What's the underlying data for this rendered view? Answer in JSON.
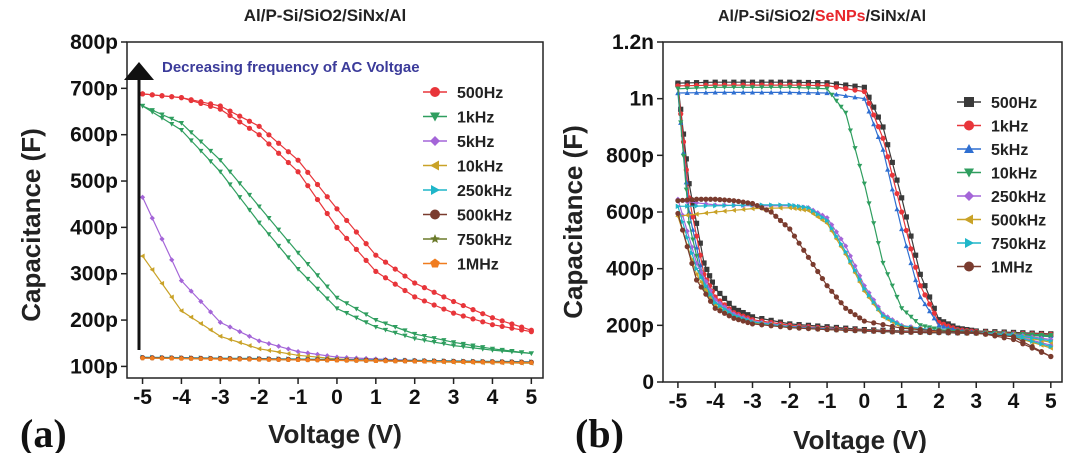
{
  "chart_data": [
    {
      "id": "a",
      "panel_label": "(a)",
      "type": "line",
      "title": "Al/P-Si/SiO2/SiNx/Al",
      "annotation": "Decreasing frequency of AC Voltgae",
      "xlabel": "Voltage (V)",
      "ylabel": "Capacitance (F)",
      "xlim": [
        -5.4,
        5.3
      ],
      "ylim": [
        75,
        800
      ],
      "x_ticks": [
        -5,
        -4,
        -3,
        -2,
        -1,
        0,
        1,
        2,
        3,
        4,
        5
      ],
      "x_tick_labels": [
        "-5",
        "-4",
        "-3",
        "-2",
        "-1",
        "0",
        "1",
        "2",
        "3",
        "4",
        "5"
      ],
      "y_ticks": [
        100,
        200,
        300,
        400,
        500,
        600,
        700,
        800
      ],
      "y_tick_labels": [
        "100p",
        "200p",
        "300p",
        "400p",
        "500p",
        "600p",
        "700p",
        "800p"
      ],
      "legend_position": "top-right",
      "series": [
        {
          "name": "500Hz",
          "color": "#e8353a",
          "marker": "circle",
          "x": [
            -5,
            -4,
            -3,
            -2,
            -1,
            0,
            1,
            2,
            3,
            4,
            5
          ],
          "y_fwd": [
            688,
            680,
            662,
            618,
            545,
            440,
            340,
            280,
            240,
            205,
            178
          ],
          "y_rev": [
            688,
            680,
            655,
            600,
            520,
            400,
            305,
            250,
            215,
            190,
            175
          ]
        },
        {
          "name": "1kHz",
          "color": "#2f9e5f",
          "marker": "triangle-down",
          "x": [
            -5,
            -4,
            -3,
            -2,
            -1,
            0,
            1,
            2,
            3,
            4,
            5
          ],
          "y_fwd": [
            662,
            625,
            545,
            445,
            345,
            248,
            200,
            170,
            152,
            138,
            128
          ],
          "y_rev": [
            662,
            610,
            520,
            410,
            310,
            225,
            185,
            160,
            145,
            135,
            128
          ]
        },
        {
          "name": "5kHz",
          "color": "#a465d8",
          "marker": "diamond",
          "x": [
            -5,
            -4,
            -3,
            -2,
            -1,
            0,
            1,
            2,
            3,
            4,
            5
          ],
          "y": [
            465,
            285,
            195,
            155,
            132,
            120,
            116,
            113,
            111,
            109,
            108
          ]
        },
        {
          "name": "10kHz",
          "color": "#c9a227",
          "marker": "triangle-left",
          "x": [
            -5,
            -4,
            -3,
            -2,
            -1,
            0,
            1,
            2,
            3,
            4,
            5
          ],
          "y": [
            338,
            220,
            165,
            138,
            124,
            116,
            113,
            111,
            109,
            108,
            107
          ]
        },
        {
          "name": "250kHz",
          "color": "#1fb6c9",
          "marker": "triangle-right",
          "x": [
            -5,
            -4,
            -3,
            -2,
            -1,
            0,
            1,
            2,
            3,
            4,
            5
          ],
          "y": [
            120,
            119,
            118,
            117,
            116,
            115,
            114,
            113,
            112,
            111,
            110
          ]
        },
        {
          "name": "500kHz",
          "color": "#7a3b2e",
          "marker": "circle",
          "x": [
            -5,
            -4,
            -3,
            -2,
            -1,
            0,
            1,
            2,
            3,
            4,
            5
          ],
          "y": [
            119,
            118,
            117,
            116,
            115,
            114,
            113,
            112,
            111,
            110,
            109
          ]
        },
        {
          "name": "750kHz",
          "color": "#6b7a2a",
          "marker": "star",
          "x": [
            -5,
            -4,
            -3,
            -2,
            -1,
            0,
            1,
            2,
            3,
            4,
            5
          ],
          "y": [
            118,
            117,
            116,
            115,
            114,
            113,
            112,
            111,
            110,
            109,
            108
          ]
        },
        {
          "name": "1MHz",
          "color": "#f07c1f",
          "marker": "pentagon",
          "x": [
            -5,
            -4,
            -3,
            -2,
            -1,
            0,
            1,
            2,
            3,
            4,
            5
          ],
          "y": [
            118,
            117,
            116,
            115,
            114,
            113,
            112,
            111,
            110,
            109,
            108
          ]
        }
      ]
    },
    {
      "id": "b",
      "panel_label": "(b)",
      "type": "line",
      "title_parts": [
        {
          "text": "Al/P-Si/SiO2/",
          "color": "#222222"
        },
        {
          "text": "SeNPs",
          "color": "#e8262b"
        },
        {
          "text": "/SiNx/Al",
          "color": "#222222"
        }
      ],
      "xlabel": "Voltage (V)",
      "ylabel": "Capacitance (F)",
      "xlim": [
        -5.4,
        5.3
      ],
      "ylim": [
        0,
        1200
      ],
      "x_ticks": [
        -5,
        -4,
        -3,
        -2,
        -1,
        0,
        1,
        2,
        3,
        4,
        5
      ],
      "x_tick_labels": [
        "-5",
        "-4",
        "-3",
        "-2",
        "-1",
        "0",
        "1",
        "2",
        "3",
        "4",
        "5"
      ],
      "y_ticks": [
        0,
        200,
        400,
        600,
        800,
        1000,
        1200
      ],
      "y_tick_labels": [
        "0",
        "200p",
        "400p",
        "600p",
        "800p",
        "1n",
        "1.2n"
      ],
      "legend_position": "right",
      "series": [
        {
          "name": "500Hz",
          "color": "#3a3a3a",
          "marker": "square",
          "x_up": [
            -5,
            -4.7,
            -4.3,
            -4,
            -3.5,
            -3,
            -2,
            -1,
            0,
            1,
            2,
            3,
            4,
            5
          ],
          "y_up": [
            1050,
            700,
            420,
            330,
            260,
            230,
            205,
            195,
            185,
            180,
            178,
            176,
            172,
            168
          ],
          "x_dn": [
            -5,
            -4,
            -3,
            -2,
            -1,
            0,
            0.5,
            1,
            1.5,
            2,
            2.5,
            3,
            4,
            5
          ],
          "y_dn": [
            1055,
            1058,
            1058,
            1058,
            1056,
            1040,
            900,
            650,
            380,
            220,
            190,
            180,
            175,
            170
          ]
        },
        {
          "name": "1kHz",
          "color": "#e8353a",
          "marker": "circle",
          "x_up": [
            -5,
            -4.7,
            -4.3,
            -4,
            -3.5,
            -3,
            -2,
            -1,
            0,
            1,
            2,
            3,
            4,
            5
          ],
          "y_up": [
            1045,
            650,
            380,
            300,
            245,
            220,
            200,
            190,
            182,
            178,
            176,
            174,
            170,
            165
          ],
          "x_dn": [
            -5,
            -4,
            -3,
            -2,
            -1,
            0,
            0.5,
            1,
            1.5,
            2,
            2.5,
            3,
            4,
            5
          ],
          "y_dn": [
            1045,
            1048,
            1048,
            1048,
            1046,
            1025,
            860,
            600,
            340,
            210,
            185,
            178,
            172,
            168
          ]
        },
        {
          "name": "5kHz",
          "color": "#2f6fd1",
          "marker": "triangle-up",
          "x_up": [
            -5,
            -4.7,
            -4.3,
            -4,
            -3.5,
            -3,
            -2,
            -1,
            0,
            1,
            2,
            3,
            4,
            5
          ],
          "y_up": [
            1020,
            600,
            350,
            280,
            235,
            212,
            196,
            188,
            180,
            176,
            174,
            172,
            168,
            162
          ],
          "x_dn": [
            -5,
            -4,
            -3,
            -2,
            -1,
            0,
            0.5,
            1,
            1.5,
            2,
            2.5,
            3,
            4,
            5
          ],
          "y_dn": [
            1020,
            1022,
            1022,
            1022,
            1020,
            1000,
            820,
            540,
            300,
            200,
            182,
            176,
            170,
            165
          ]
        },
        {
          "name": "10kHz",
          "color": "#2f9e5f",
          "marker": "triangle-down",
          "x_up": [
            -5,
            -4.7,
            -4.3,
            -4,
            -3.5,
            -3,
            -2,
            -1,
            0,
            1,
            2,
            3,
            4,
            5
          ],
          "y_up": [
            1035,
            560,
            330,
            270,
            228,
            208,
            194,
            186,
            180,
            176,
            174,
            172,
            168,
            160
          ],
          "x_dn": [
            -5,
            -4,
            -3,
            -2,
            -1,
            -0.5,
            0,
            0.5,
            1,
            1.5,
            2,
            3,
            4,
            5
          ],
          "y_dn": [
            1035,
            1040,
            1040,
            1040,
            1035,
            950,
            700,
            420,
            260,
            200,
            185,
            176,
            170,
            165
          ]
        },
        {
          "name": "250kHz",
          "color": "#a465d8",
          "marker": "diamond",
          "x_up": [
            -5,
            -4.5,
            -4,
            -3.5,
            -3,
            -2,
            -1,
            0,
            1,
            2,
            3,
            4,
            5
          ],
          "y_up": [
            645,
            420,
            290,
            240,
            215,
            195,
            186,
            180,
            176,
            174,
            172,
            168,
            150
          ],
          "x_dn": [
            -5,
            -4,
            -3,
            -2,
            -1.5,
            -1,
            -0.5,
            0,
            0.5,
            1,
            2,
            3,
            4,
            5
          ],
          "y_dn": [
            640,
            625,
            622,
            622,
            615,
            580,
            480,
            340,
            240,
            200,
            180,
            174,
            165,
            130
          ]
        },
        {
          "name": "500kHz",
          "color": "#c9a227",
          "marker": "triangle-left",
          "x_up": [
            -5,
            -4.5,
            -4,
            -3.5,
            -3,
            -2,
            -1,
            0,
            1,
            2,
            3,
            4,
            5
          ],
          "y_up": [
            585,
            380,
            270,
            230,
            210,
            193,
            185,
            180,
            176,
            174,
            172,
            166,
            140
          ],
          "x_dn": [
            -5,
            -4,
            -3,
            -2,
            -1.5,
            -1,
            -0.5,
            0,
            0.5,
            1,
            2,
            3,
            4,
            5
          ],
          "y_dn": [
            585,
            600,
            612,
            615,
            605,
            560,
            450,
            320,
            230,
            195,
            178,
            172,
            160,
            120
          ]
        },
        {
          "name": "750kHz",
          "color": "#1fb6c9",
          "marker": "triangle-right",
          "x_up": [
            -5,
            -4.5,
            -4,
            -3.5,
            -3,
            -2,
            -1,
            0,
            1,
            2,
            3,
            4,
            5
          ],
          "y_up": [
            620,
            400,
            280,
            235,
            212,
            194,
            186,
            180,
            176,
            174,
            172,
            166,
            145
          ],
          "x_dn": [
            -5,
            -4,
            -3,
            -2,
            -1.5,
            -1,
            -0.5,
            0,
            0.5,
            1,
            2,
            3,
            4,
            5
          ],
          "y_dn": [
            620,
            622,
            625,
            625,
            615,
            570,
            460,
            330,
            235,
            198,
            180,
            173,
            162,
            125
          ]
        },
        {
          "name": "1MHz",
          "color": "#7a3b2e",
          "marker": "circle",
          "x_up": [
            -5,
            -4.5,
            -4,
            -3.5,
            -3,
            -2,
            -1,
            0,
            1,
            2,
            3,
            4,
            5
          ],
          "y_up": [
            595,
            360,
            260,
            225,
            205,
            192,
            185,
            180,
            176,
            174,
            172,
            160,
            90
          ],
          "x_dn": [
            -5,
            -4.5,
            -4,
            -3.5,
            -3,
            -2.5,
            -2,
            -1.5,
            -1,
            -0.5,
            0,
            1,
            2,
            3,
            4,
            5
          ],
          "y_dn": [
            640,
            645,
            645,
            640,
            630,
            600,
            540,
            440,
            340,
            260,
            215,
            190,
            180,
            175,
            150,
            90
          ]
        }
      ]
    }
  ]
}
